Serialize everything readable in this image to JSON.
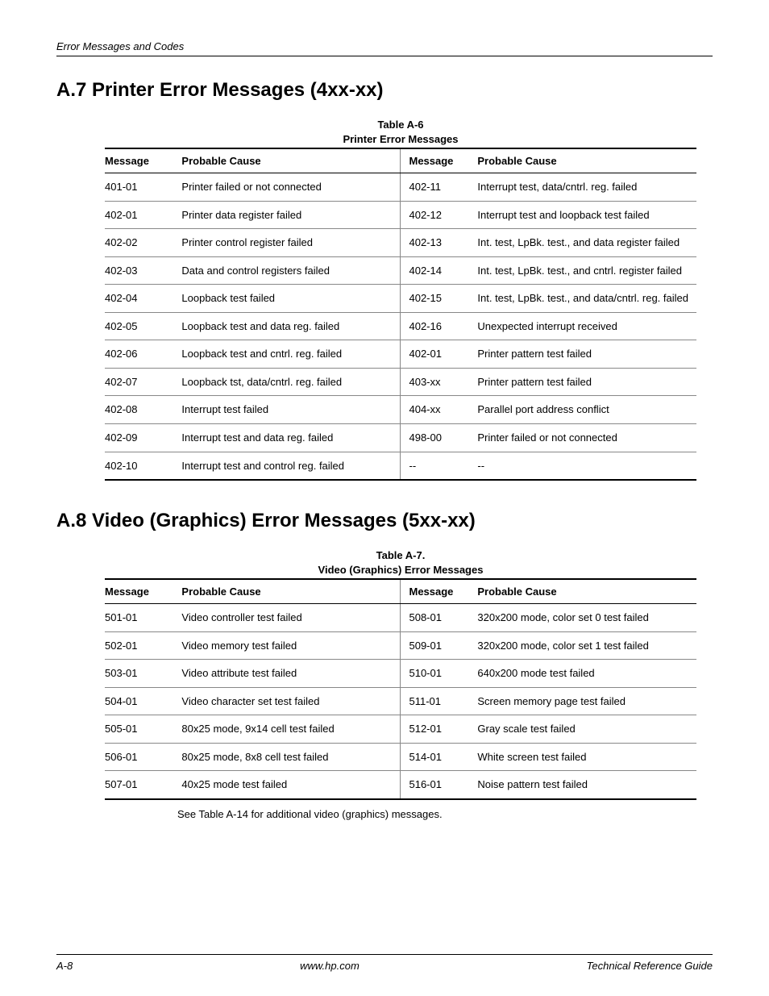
{
  "header": {
    "section": "Error Messages and Codes"
  },
  "section1": {
    "heading": "A.7 Printer Error Messages (4xx-xx)",
    "caption_line1": "Table A-6",
    "caption_line2": "Printer Error Messages",
    "cols": {
      "msg": "Message",
      "cause": "Probable Cause"
    },
    "rows": [
      {
        "m1": "401-01",
        "c1": "Printer failed or not connected",
        "m2": "402-11",
        "c2": "Interrupt test, data/cntrl. reg. failed"
      },
      {
        "m1": "402-01",
        "c1": "Printer data register failed",
        "m2": "402-12",
        "c2": "Interrupt test and loopback test failed"
      },
      {
        "m1": "402-02",
        "c1": "Printer control register failed",
        "m2": "402-13",
        "c2": "Int. test, LpBk. test., and data register failed"
      },
      {
        "m1": "402-03",
        "c1": "Data and control registers failed",
        "m2": "402-14",
        "c2": "Int. test, LpBk. test., and cntrl. register failed"
      },
      {
        "m1": "402-04",
        "c1": "Loopback test failed",
        "m2": "402-15",
        "c2": "Int. test, LpBk. test., and data/cntrl. reg. failed"
      },
      {
        "m1": "402-05",
        "c1": "Loopback test and data reg. failed",
        "m2": "402-16",
        "c2": "Unexpected interrupt received"
      },
      {
        "m1": "402-06",
        "c1": "Loopback test and cntrl. reg. failed",
        "m2": "402-01",
        "c2": "Printer pattern test failed"
      },
      {
        "m1": "402-07",
        "c1": "Loopback tst, data/cntrl. reg. failed",
        "m2": "403-xx",
        "c2": "Printer pattern test failed"
      },
      {
        "m1": "402-08",
        "c1": "Interrupt test failed",
        "m2": "404-xx",
        "c2": "Parallel port address conflict"
      },
      {
        "m1": "402-09",
        "c1": "Interrupt test and data reg. failed",
        "m2": "498-00",
        "c2": "Printer failed or not connected"
      },
      {
        "m1": "402-10",
        "c1": "Interrupt test and control reg. failed",
        "m2": "--",
        "c2": "--"
      }
    ]
  },
  "section2": {
    "heading": "A.8 Video (Graphics) Error Messages (5xx-xx)",
    "caption_line1": "Table A-7.",
    "caption_line2": "Video (Graphics) Error Messages",
    "cols": {
      "msg": "Message",
      "cause": "Probable Cause"
    },
    "rows": [
      {
        "m1": "501-01",
        "c1": "Video controller test failed",
        "m2": "508-01",
        "c2": "320x200 mode, color set 0 test failed"
      },
      {
        "m1": "502-01",
        "c1": "Video memory test failed",
        "m2": "509-01",
        "c2": "320x200 mode, color set 1 test failed"
      },
      {
        "m1": "503-01",
        "c1": "Video attribute test failed",
        "m2": "510-01",
        "c2": "640x200 mode test failed"
      },
      {
        "m1": "504-01",
        "c1": "Video character set test failed",
        "m2": "511-01",
        "c2": "Screen memory page test failed"
      },
      {
        "m1": "505-01",
        "c1": "80x25 mode, 9x14 cell test failed",
        "m2": "512-01",
        "c2": "Gray scale test failed"
      },
      {
        "m1": "506-01",
        "c1": "80x25 mode, 8x8 cell test failed",
        "m2": "514-01",
        "c2": "White screen test failed"
      },
      {
        "m1": "507-01",
        "c1": "40x25 mode test failed",
        "m2": "516-01",
        "c2": "Noise pattern test failed"
      }
    ],
    "note": "See Table A-14 for additional video (graphics) messages."
  },
  "footer": {
    "left": "A-8",
    "center": "www.hp.com",
    "right": "Technical Reference Guide"
  }
}
